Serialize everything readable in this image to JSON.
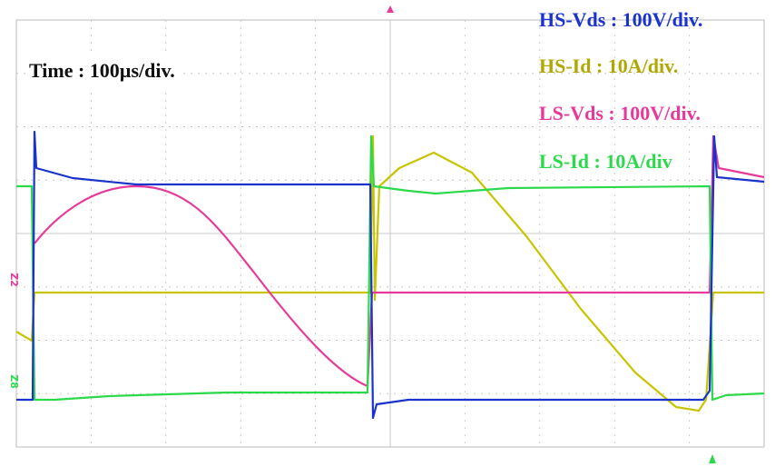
{
  "labels": {
    "time": "Time : 100µs/div.",
    "hs_vds": "HS-Vds : 100V/div.",
    "hs_id": "HS-Id : 10A/div.",
    "ls_vds": "LS-Vds : 100V/div.",
    "ls_id": "LS-Id : 10A/div"
  },
  "markers": {
    "z2": "Z2",
    "z8": "Z8"
  }
}
